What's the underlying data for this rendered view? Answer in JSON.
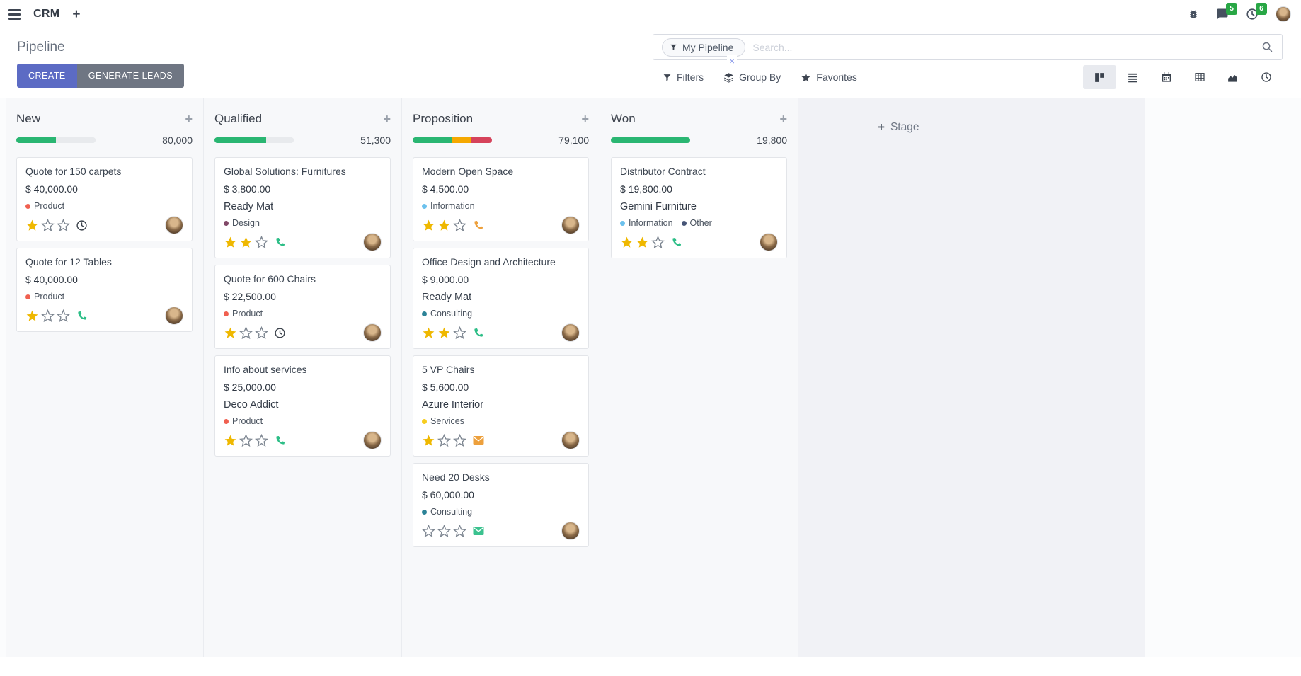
{
  "navbar": {
    "app_name": "CRM",
    "messages_badge": "5",
    "activities_badge": "6",
    "icons": [
      "menu-icon",
      "plus-icon",
      "bug-icon",
      "messages-icon",
      "activities-clock-icon",
      "avatar"
    ]
  },
  "control_panel": {
    "breadcrumb": "Pipeline",
    "create_label": "CREATE",
    "generate_leads_label": "GENERATE LEADS",
    "search": {
      "facet_label": "My Pipeline",
      "remove_facet": "×",
      "placeholder": "Search..."
    },
    "filters_label": "Filters",
    "group_by_label": "Group By",
    "favorites_label": "Favorites",
    "view_switcher": [
      "kanban",
      "list",
      "calendar",
      "pivot",
      "graph",
      "activity"
    ],
    "active_view": "kanban"
  },
  "kanban": {
    "add_stage_label": "Stage",
    "columns": [
      {
        "name": "New",
        "total": "80,000",
        "progress": [
          {
            "color": "#2ab672",
            "pct": 50
          },
          {
            "color": "#e8eaed",
            "pct": 50
          }
        ],
        "cards": [
          {
            "title": "Quote for 150 carpets",
            "amount": "$ 40,000.00",
            "partner": null,
            "tags": [
              {
                "label": "Product",
                "color": "#f06050"
              }
            ],
            "stars": 1,
            "icon": {
              "glyph": "clock",
              "color": "#3c434c"
            }
          },
          {
            "title": "Quote for 12 Tables",
            "amount": "$ 40,000.00",
            "partner": null,
            "tags": [
              {
                "label": "Product",
                "color": "#f06050"
              }
            ],
            "stars": 1,
            "icon": {
              "glyph": "phone",
              "color": "#2dbe87"
            }
          }
        ]
      },
      {
        "name": "Qualified",
        "total": "51,300",
        "progress": [
          {
            "color": "#2ab672",
            "pct": 65
          },
          {
            "color": "#e8eaed",
            "pct": 35
          }
        ],
        "cards": [
          {
            "title": "Global Solutions: Furnitures",
            "amount": "$ 3,800.00",
            "partner": "Ready Mat",
            "tags": [
              {
                "label": "Design",
                "color": "#814968"
              }
            ],
            "stars": 2,
            "icon": {
              "glyph": "phone",
              "color": "#2dbe87"
            }
          },
          {
            "title": "Quote for 600 Chairs",
            "amount": "$ 22,500.00",
            "partner": null,
            "tags": [
              {
                "label": "Product",
                "color": "#f06050"
              }
            ],
            "stars": 1,
            "icon": {
              "glyph": "clock",
              "color": "#3c434c"
            }
          },
          {
            "title": "Info about services",
            "amount": "$ 25,000.00",
            "partner": "Deco Addict",
            "tags": [
              {
                "label": "Product",
                "color": "#f06050"
              }
            ],
            "stars": 1,
            "icon": {
              "glyph": "phone",
              "color": "#2dbe87"
            }
          }
        ]
      },
      {
        "name": "Proposition",
        "total": "79,100",
        "progress": [
          {
            "color": "#2ab672",
            "pct": 50
          },
          {
            "color": "#f5a800",
            "pct": 24
          },
          {
            "color": "#d6435b",
            "pct": 26
          }
        ],
        "cards": [
          {
            "title": "Modern Open Space",
            "amount": "$ 4,500.00",
            "partner": null,
            "tags": [
              {
                "label": "Information",
                "color": "#6cc1ed"
              }
            ],
            "stars": 2,
            "icon": {
              "glyph": "phone",
              "color": "#eda03c"
            }
          },
          {
            "title": "Office Design and Architecture",
            "amount": "$ 9,000.00",
            "partner": "Ready Mat",
            "tags": [
              {
                "label": "Consulting",
                "color": "#2c8397"
              }
            ],
            "stars": 2,
            "icon": {
              "glyph": "phone",
              "color": "#2dbe87"
            }
          },
          {
            "title": "5 VP Chairs",
            "amount": "$ 5,600.00",
            "partner": "Azure Interior",
            "tags": [
              {
                "label": "Services",
                "color": "#f7cd1f"
              }
            ],
            "stars": 1,
            "icon": {
              "glyph": "envelope",
              "color": "#eda03c"
            }
          },
          {
            "title": "Need 20 Desks",
            "amount": "$ 60,000.00",
            "partner": null,
            "tags": [
              {
                "label": "Consulting",
                "color": "#2c8397"
              }
            ],
            "stars": 0,
            "icon": {
              "glyph": "envelope",
              "color": "#3bc28f"
            }
          }
        ]
      },
      {
        "name": "Won",
        "total": "19,800",
        "progress": [
          {
            "color": "#2ab672",
            "pct": 100
          }
        ],
        "cards": [
          {
            "title": "Distributor Contract",
            "amount": "$ 19,800.00",
            "partner": "Gemini Furniture",
            "tags": [
              {
                "label": "Information",
                "color": "#6cc1ed"
              },
              {
                "label": "Other",
                "color": "#475577"
              }
            ],
            "stars": 2,
            "icon": {
              "glyph": "phone",
              "color": "#2dbe87"
            }
          }
        ]
      }
    ]
  },
  "colors": {
    "primary_button": "#5c6bc4",
    "secondary_button": "#6f7683",
    "badge_green": "#28a745",
    "star_gold": "#efb800",
    "star_empty": "#7d8691"
  }
}
